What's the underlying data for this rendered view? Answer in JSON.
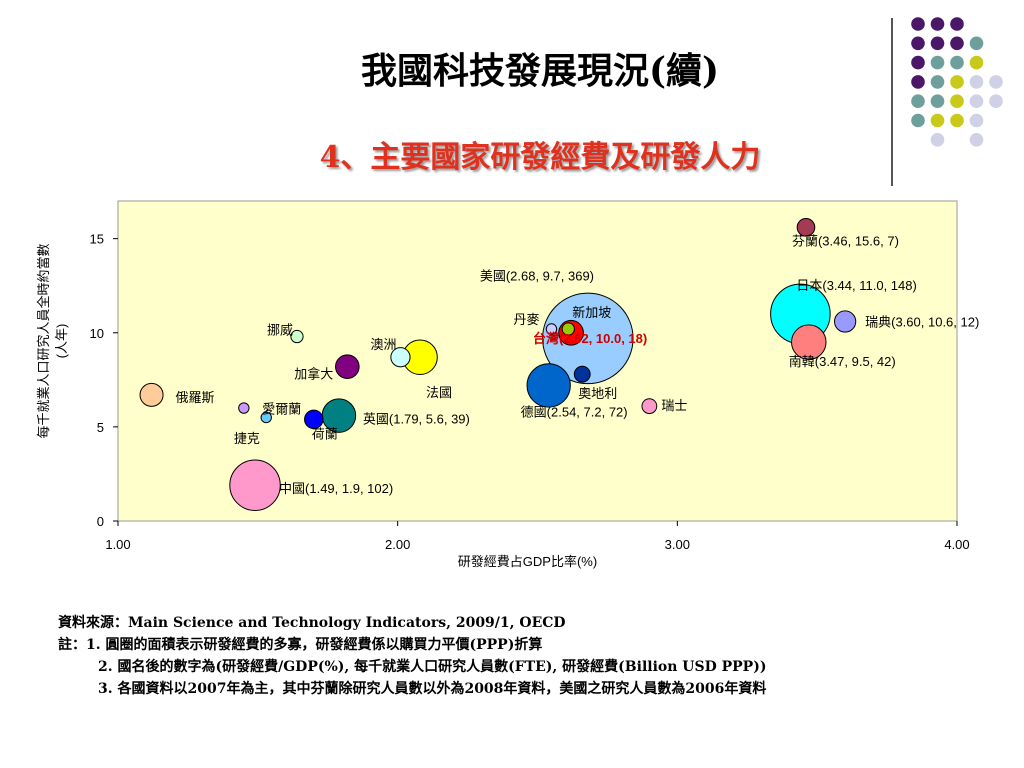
{
  "title": "我國科技發展現況(續)",
  "subtitle": "4、主要國家研發經費及研發人力",
  "decor_dot_colors": [
    "#4b1869",
    "#6f9f9d",
    "#c9c91b",
    "#d0d0e6"
  ],
  "chart_data": {
    "type": "scatter",
    "xlabel": "研發經費占GDP比率(%)",
    "ylabel": "每千就業人口研究人員全時約當數(人年)",
    "xlim": [
      1.0,
      4.0
    ],
    "ylim": [
      0,
      17
    ],
    "xticks": [
      "1.00",
      "2.00",
      "3.00",
      "4.00"
    ],
    "yticks": [
      "0",
      "5",
      "10",
      "15"
    ],
    "grid": false,
    "background": "#ffffcc",
    "points": [
      {
        "name": "芬蘭",
        "x": 3.46,
        "y": 15.6,
        "size": 7,
        "color": "#a53a54",
        "label": "芬蘭(3.46, 15.6, 7)"
      },
      {
        "name": "日本",
        "x": 3.44,
        "y": 11.0,
        "size": 148,
        "color": "#00ffff",
        "label": "日本(3.44, 11.0, 148)"
      },
      {
        "name": "瑞典",
        "x": 3.6,
        "y": 10.6,
        "size": 12,
        "color": "#9999ff",
        "label": "瑞典(3.60, 10.6, 12)"
      },
      {
        "name": "南韓",
        "x": 3.47,
        "y": 9.5,
        "size": 42,
        "color": "#ff7f7f",
        "label": "南韓(3.47, 9.5, 42)"
      },
      {
        "name": "美國",
        "x": 2.68,
        "y": 9.7,
        "size": 369,
        "color": "#99ccff",
        "label": "美國(2.68, 9.7, 369)"
      },
      {
        "name": "台灣",
        "x": 2.62,
        "y": 10.0,
        "size": 18,
        "color": "#ff0000",
        "label": "台灣(2.62, 10.0, 18)"
      },
      {
        "name": "新加坡",
        "x": 2.61,
        "y": 10.2,
        "size": 2,
        "color": "#99cc00",
        "label": "新加坡"
      },
      {
        "name": "丹麥",
        "x": 2.55,
        "y": 10.2,
        "size": 1,
        "color": "#ccccff",
        "label": "丹麥"
      },
      {
        "name": "奧地利",
        "x": 2.66,
        "y": 7.8,
        "size": 5,
        "color": "#003399",
        "label": "奧地利"
      },
      {
        "name": "德國",
        "x": 2.54,
        "y": 7.2,
        "size": 72,
        "color": "#0066cc",
        "label": "德國(2.54, 7.2, 72)"
      },
      {
        "name": "瑞士",
        "x": 2.9,
        "y": 6.1,
        "size": 4,
        "color": "#ff99cc",
        "label": "瑞士"
      },
      {
        "name": "法國",
        "x": 2.08,
        "y": 8.7,
        "size": 42,
        "color": "#ffff00",
        "label": "法國"
      },
      {
        "name": "澳洲",
        "x": 2.01,
        "y": 8.7,
        "size": 9,
        "color": "#ccffff",
        "label": "澳洲"
      },
      {
        "name": "加拿大",
        "x": 1.82,
        "y": 8.2,
        "size": 16,
        "color": "#800080",
        "label": "加拿大"
      },
      {
        "name": "挪威",
        "x": 1.64,
        "y": 9.8,
        "size": 2,
        "color": "#ccffcc",
        "label": "挪威"
      },
      {
        "name": "英國",
        "x": 1.79,
        "y": 5.6,
        "size": 39,
        "color": "#008080",
        "label": "英國(1.79, 5.6, 39)"
      },
      {
        "name": "荷蘭",
        "x": 1.7,
        "y": 5.4,
        "size": 8,
        "color": "#0000ff",
        "label": "荷蘭"
      },
      {
        "name": "愛爾蘭",
        "x": 1.53,
        "y": 5.5,
        "size": 1,
        "color": "#66ccff",
        "label": "愛爾蘭"
      },
      {
        "name": "捷克",
        "x": 1.45,
        "y": 6.0,
        "size": 1,
        "color": "#cc99ff",
        "label": "捷克"
      },
      {
        "name": "俄羅斯",
        "x": 1.12,
        "y": 6.7,
        "size": 15,
        "color": "#ffcc99",
        "label": "俄羅斯"
      },
      {
        "name": "中國",
        "x": 1.49,
        "y": 1.9,
        "size": 102,
        "color": "#ff99cc",
        "label": "中國(1.49, 1.9, 102)"
      }
    ]
  },
  "notes": {
    "source": "資料來源：Main Science and Technology Indicators, 2009/1, OECD",
    "note1": "註：1. 圓圈的面積表示研發經費的多寡，研發經費係以購買力平價(PPP)折算",
    "note2": "2. 國名後的數字為(研發經費/GDP(%), 每千就業人口研究人員數(FTE), 研發經費(Billion USD PPP))",
    "note3": "3. 各國資料以2007年為主，其中芬蘭除研究人員數以外為2008年資料，美國之研究人員數為2006年資料"
  }
}
